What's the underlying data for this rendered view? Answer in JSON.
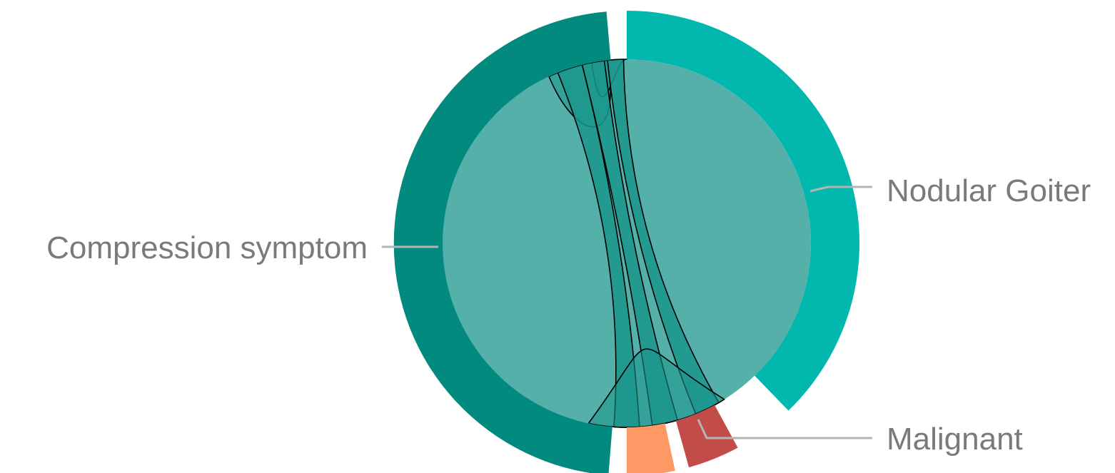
{
  "chart_data": {
    "type": "chord",
    "title": "",
    "nodes": [
      {
        "name": "Nodular Goiter",
        "color": "#02b7ad"
      },
      {
        "name": "Malignant",
        "color": "#c24c48"
      },
      {
        "name": "Compression symptom",
        "color": "#038a7f"
      }
    ],
    "unlabeled_segments": [
      {
        "color": "#fe9965"
      }
    ],
    "links": [
      {
        "from": "Nodular Goiter",
        "to": "Nodular Goiter"
      },
      {
        "from": "Nodular Goiter",
        "to": "Malignant"
      },
      {
        "from": "Nodular Goiter",
        "to": "Compression symptom"
      },
      {
        "from": "Malignant",
        "to": "Compression symptom"
      },
      {
        "from": "Compression symptom",
        "to": "Compression symptom"
      }
    ],
    "inner_fill_color": "#55b0aa",
    "ribbon_color": "#1b978c",
    "legend": "none"
  },
  "labels": {
    "nodular_goiter": "Nodular Goiter",
    "malignant": "Malignant",
    "compression_symptom": "Compression symptom"
  }
}
